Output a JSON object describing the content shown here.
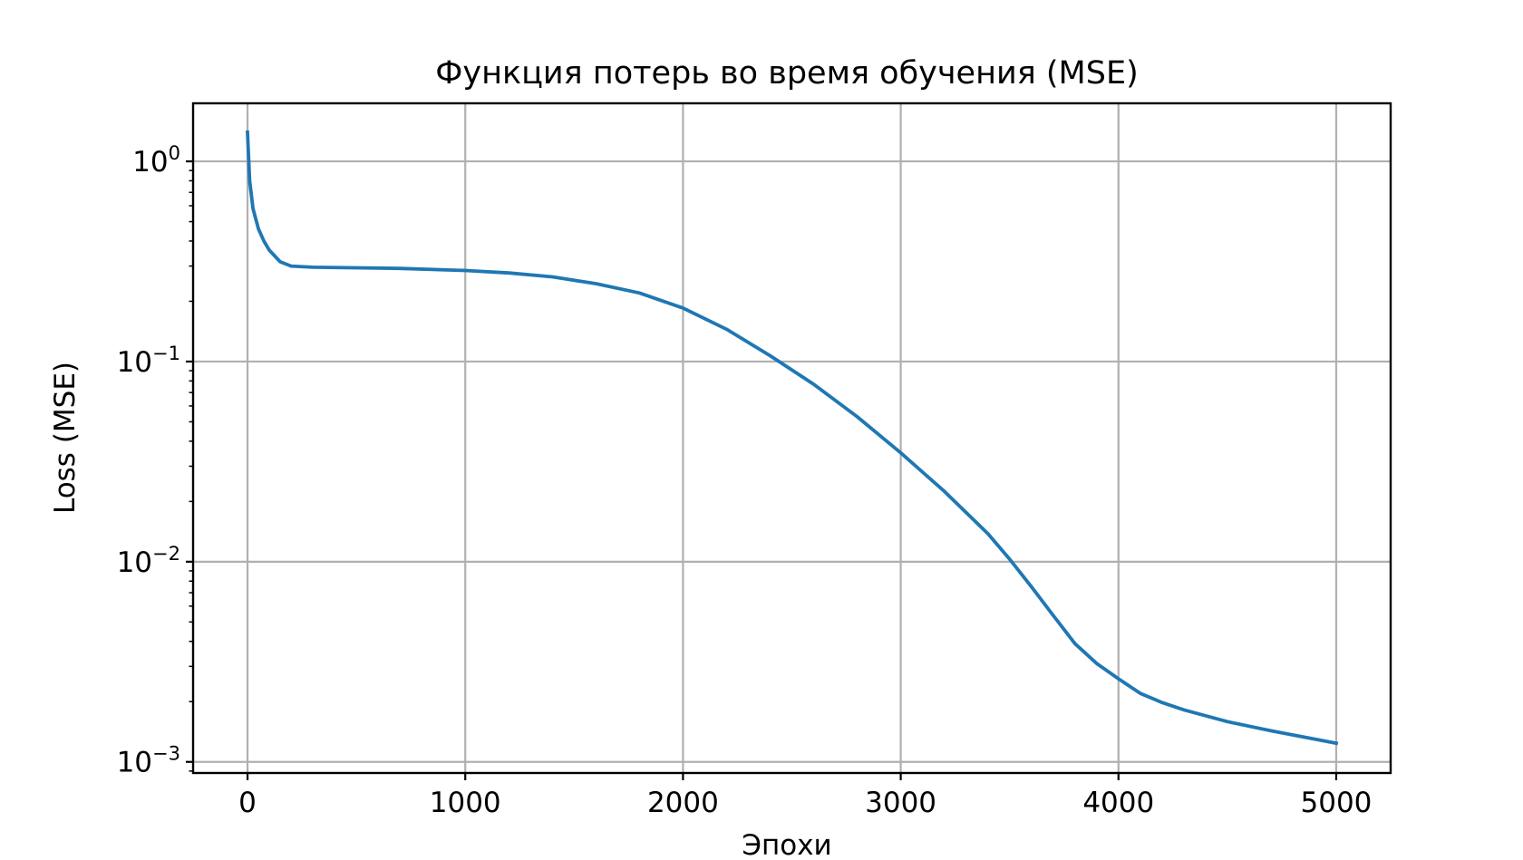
{
  "chart_data": {
    "type": "line",
    "title": "Функция потерь во время обучения (MSE)",
    "xlabel": "Эпохи",
    "ylabel": "Loss (MSE)",
    "yscale": "log",
    "xlim": [
      -250,
      5250
    ],
    "ylim": [
      0.00088,
      1.95
    ],
    "xticks": [
      0,
      1000,
      2000,
      3000,
      4000,
      5000
    ],
    "yticks": [
      {
        "base": "10",
        "exp": "0",
        "value": 1
      },
      {
        "base": "10",
        "exp": "−1",
        "value": 0.1
      },
      {
        "base": "10",
        "exp": "−2",
        "value": 0.01
      },
      {
        "base": "10",
        "exp": "−3",
        "value": 0.001
      }
    ],
    "grid": true,
    "line_color": "#1f77b4",
    "series": [
      {
        "x": [
          0,
          10,
          25,
          50,
          75,
          100,
          150,
          200,
          300,
          500,
          700,
          1000,
          1200,
          1400,
          1600,
          1800,
          2000,
          2200,
          2400,
          2600,
          2800,
          3000,
          3200,
          3400,
          3500,
          3600,
          3700,
          3800,
          3900,
          4000,
          4100,
          4200,
          4300,
          4500,
          4700,
          5000
        ],
        "y": [
          1.4,
          0.8,
          0.58,
          0.46,
          0.4,
          0.36,
          0.315,
          0.3,
          0.296,
          0.294,
          0.292,
          0.285,
          0.277,
          0.265,
          0.245,
          0.22,
          0.185,
          0.145,
          0.107,
          0.077,
          0.053,
          0.035,
          0.0225,
          0.0138,
          0.0103,
          0.0075,
          0.0054,
          0.0039,
          0.0031,
          0.0026,
          0.0022,
          0.00198,
          0.00182,
          0.00159,
          0.00143,
          0.00124
        ]
      }
    ]
  }
}
